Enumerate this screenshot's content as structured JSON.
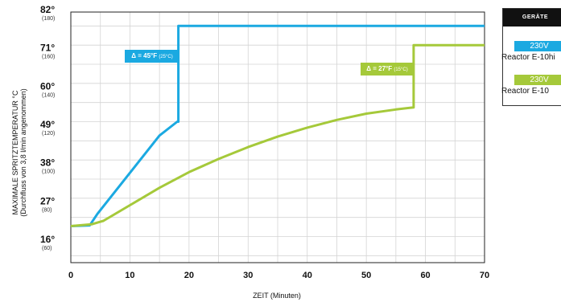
{
  "chart_data": {
    "type": "line",
    "xlabel": "ZEIT (Minuten)",
    "ylabel": "MAXIMALE SPRITZTEMPERATUR °C",
    "ylabel_sub": "(Durchfluss von 3,8 l/min angenommen)",
    "xlim": [
      0,
      70
    ],
    "ylim": [
      10,
      82
    ],
    "x_ticks": [
      0,
      10,
      20,
      30,
      40,
      50,
      60,
      70
    ],
    "y_ticks": [
      {
        "c": 16,
        "label": "16°",
        "f": "(60)"
      },
      {
        "c": 27,
        "label": "27°",
        "f": "(80)"
      },
      {
        "c": 38,
        "label": "38°",
        "f": "(100)"
      },
      {
        "c": 49,
        "label": "49°",
        "f": "(120)"
      },
      {
        "c": 60,
        "label": "60°",
        "f": "(140)"
      },
      {
        "c": 71,
        "label": "71°",
        "f": "(160)"
      },
      {
        "c": 82,
        "label": "82°",
        "f": "(180)"
      }
    ],
    "grid": true,
    "series": [
      {
        "name": "Reactor E-10hi",
        "color": "#1ba9e1",
        "points": [
          [
            0,
            20.5
          ],
          [
            3.2,
            20.7
          ],
          [
            4.5,
            24
          ],
          [
            8,
            31.5
          ],
          [
            11.5,
            39
          ],
          [
            15,
            46.5
          ],
          [
            18,
            50.5
          ],
          [
            18.2,
            50.5
          ],
          [
            18.2,
            78
          ],
          [
            70,
            78
          ]
        ]
      },
      {
        "name": "Reactor E-10",
        "color": "#a5c93a",
        "points": [
          [
            0,
            20.5
          ],
          [
            3.5,
            21
          ],
          [
            5.5,
            22
          ],
          [
            10,
            26.5
          ],
          [
            15,
            31.5
          ],
          [
            20,
            36
          ],
          [
            25,
            39.8
          ],
          [
            30,
            43.2
          ],
          [
            35,
            46.2
          ],
          [
            40,
            48.8
          ],
          [
            45,
            51
          ],
          [
            50,
            52.8
          ],
          [
            55,
            54
          ],
          [
            58,
            54.6
          ],
          [
            58,
            72.5
          ],
          [
            70,
            72.5
          ]
        ]
      }
    ],
    "annotations": [
      {
        "text": "Δ = 45°F",
        "sub": "(25°C)",
        "color": "#1ba9e1"
      },
      {
        "text": "Δ = 27°F",
        "sub": "(15°C)",
        "color": "#a5c93a"
      }
    ],
    "legend": {
      "title": "GERÄTE",
      "placement": "right",
      "items": [
        {
          "badge": "230V",
          "name": "Reactor E-10hi",
          "color": "#1ba9e1"
        },
        {
          "badge": "230V",
          "name": "Reactor E-10",
          "color": "#a5c93a"
        }
      ]
    }
  }
}
